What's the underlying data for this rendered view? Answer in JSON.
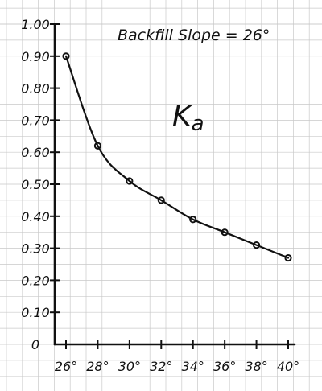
{
  "chart_data": {
    "type": "line",
    "annotation": "Backfill Slope = 26°",
    "series_label": "K",
    "series_label_sub": "a",
    "xlabel": "",
    "ylabel": "",
    "x_tick_labels": [
      "26°",
      "28°",
      "30°",
      "32°",
      "34°",
      "36°",
      "38°",
      "40°"
    ],
    "y_tick_labels": [
      "0",
      "0.10",
      "0.20",
      "0.30",
      "0.40",
      "0.50",
      "0.60",
      "0.70",
      "0.80",
      "0.90",
      "1.00"
    ],
    "xlim": [
      26,
      40
    ],
    "ylim": [
      0,
      1.0
    ],
    "grid": true,
    "x": [
      26,
      28,
      30,
      32,
      34,
      36,
      38,
      40
    ],
    "values": [
      0.9,
      0.62,
      0.51,
      0.45,
      0.39,
      0.35,
      0.31,
      0.27
    ]
  },
  "colors": {
    "ink": "#111111",
    "grid": "#c9c9c9"
  }
}
